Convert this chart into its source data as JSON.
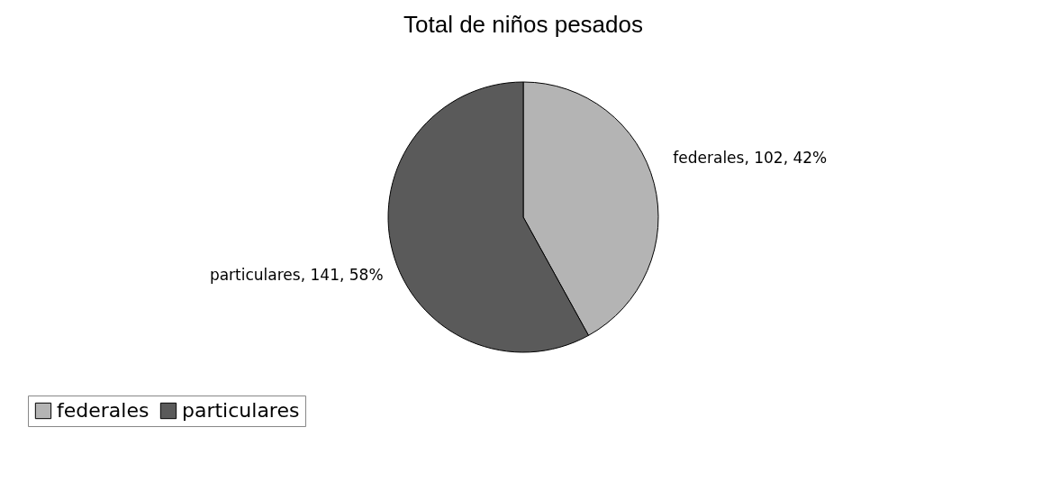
{
  "chart_data": {
    "type": "pie",
    "title": "Total de niños pesados",
    "categories": [
      "federales",
      "particulares"
    ],
    "values": [
      102,
      141
    ],
    "colors": [
      "#b4b4b4",
      "#5a5a5a"
    ],
    "value_labels": [
      "federales, 102, 42%",
      "particulares, 141, 58%"
    ],
    "legend": "bottom"
  }
}
